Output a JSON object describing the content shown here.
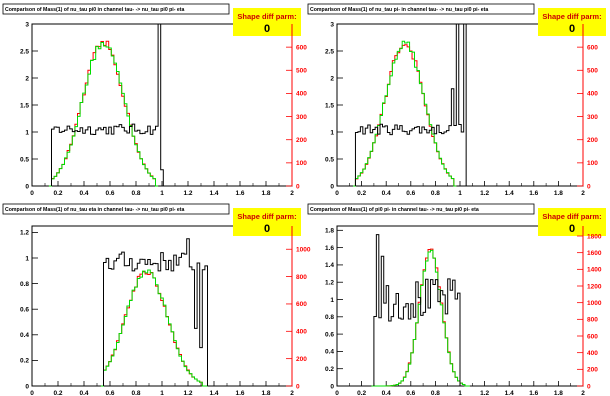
{
  "colors": {
    "ref_hist": "#ff0000",
    "test_hist": "#00dd00",
    "ratio_hist": "#000000",
    "right_axis": "#ff0000",
    "shape_box": "#ffff00",
    "shape_text": "#cc0000"
  },
  "chart_data": [
    {
      "type": "histogram",
      "title": "Comparison of Mass(1) of nu_tau pi0 in channel tau- -> nu_tau pi0 pi- eta",
      "shape_label": "Shape diff parm:",
      "shape_value": "0",
      "xlim": [
        0,
        2
      ],
      "xticks": [
        0,
        0.2,
        0.4,
        0.6,
        0.8,
        1,
        1.2,
        1.4,
        1.6,
        1.8,
        2
      ],
      "xtick_labels": [
        "0",
        "0.2",
        "0.4",
        "0.6",
        "0.8",
        "1",
        "1.2",
        "1.4",
        "1.6",
        "1.8",
        "2"
      ],
      "left_ylim": [
        0,
        3
      ],
      "left_yticks": [
        0,
        0.5,
        1,
        1.5,
        2,
        2.5,
        3
      ],
      "left_ytick_labels": [
        "0",
        "0.5",
        "1",
        "1.5",
        "2",
        "2.5",
        "3"
      ],
      "right_ylim": [
        0,
        700
      ],
      "right_yticks": [
        0,
        100,
        200,
        300,
        400,
        500,
        600
      ],
      "right_ytick_labels": [
        "0",
        "100",
        "200",
        "300",
        "400",
        "500",
        "600"
      ],
      "peak": {
        "mu": 0.55,
        "sigma": 0.16,
        "height": 2.65,
        "from": 0.15,
        "to": 0.95
      },
      "ratio": {
        "from": 0.15,
        "to": 1.0,
        "level": 1.05,
        "noise": 0.1,
        "spikes": [
          [
            0.97,
            3.0
          ],
          [
            0.99,
            0.3
          ]
        ]
      }
    },
    {
      "type": "histogram",
      "title": "Comparison of Mass(1) of nu_tau pi- in channel tau- -> nu_tau pi0 pi- eta",
      "shape_label": "Shape diff parm:",
      "shape_value": "0",
      "xlim": [
        0,
        2
      ],
      "xticks": [
        0,
        0.2,
        0.4,
        0.6,
        0.8,
        1,
        1.2,
        1.4,
        1.6,
        1.8,
        2
      ],
      "xtick_labels": [
        "0",
        "0.2",
        "0.4",
        "0.6",
        "0.8",
        "1",
        "1.2",
        "1.4",
        "1.6",
        "1.8",
        "2"
      ],
      "left_ylim": [
        0,
        3
      ],
      "left_yticks": [
        0,
        0.5,
        1,
        1.5,
        2,
        2.5,
        3
      ],
      "left_ytick_labels": [
        "0",
        "0.5",
        "1",
        "1.5",
        "2",
        "2.5",
        "3"
      ],
      "right_ylim": [
        0,
        700
      ],
      "right_yticks": [
        0,
        100,
        200,
        300,
        400,
        500,
        600
      ],
      "right_ytick_labels": [
        "0",
        "100",
        "200",
        "300",
        "400",
        "500",
        "600"
      ],
      "peak": {
        "mu": 0.55,
        "sigma": 0.16,
        "height": 2.65,
        "from": 0.15,
        "to": 0.95
      },
      "ratio": {
        "from": 0.15,
        "to": 1.05,
        "level": 1.05,
        "noise": 0.1,
        "spikes": [
          [
            0.93,
            1.8
          ],
          [
            0.97,
            3.0
          ],
          [
            1.03,
            3.0
          ]
        ]
      }
    },
    {
      "type": "histogram",
      "title": "Comparison of Mass(1) of nu_tau eta in channel tau- -> nu_tau pi0 pi- eta",
      "shape_label": "Shape diff parm:",
      "shape_value": "0",
      "xlim": [
        0,
        2
      ],
      "xticks": [
        0,
        0.2,
        0.4,
        0.6,
        0.8,
        1,
        1.2,
        1.4,
        1.6,
        1.8,
        2
      ],
      "xtick_labels": [
        "0",
        "0.2",
        "0.4",
        "0.6",
        "0.8",
        "1",
        "1.2",
        "1.4",
        "1.6",
        "1.8",
        "2"
      ],
      "left_ylim": [
        0,
        1.25
      ],
      "left_yticks": [
        0,
        0.2,
        0.4,
        0.6,
        0.8,
        1,
        1.2
      ],
      "left_ytick_labels": [
        "0",
        "0.2",
        "0.4",
        "0.6",
        "0.8",
        "1",
        "1.2"
      ],
      "right_ylim": [
        0,
        1170
      ],
      "right_yticks": [
        0,
        200,
        400,
        600,
        800,
        1000
      ],
      "right_ytick_labels": [
        "0",
        "200",
        "400",
        "600",
        "800",
        "1000"
      ],
      "peak": {
        "mu": 0.88,
        "sigma": 0.16,
        "height": 0.9,
        "from": 0.55,
        "to": 1.32
      },
      "ratio": {
        "from": 0.55,
        "to": 1.35,
        "level": 0.97,
        "noise": 0.08,
        "spikes": [
          [
            1.2,
            1.15
          ],
          [
            1.25,
            0.45
          ],
          [
            1.3,
            0.3
          ]
        ]
      }
    },
    {
      "type": "histogram",
      "title": "Comparison of Mass(1) of pi0 pi- in channel tau- -> nu_tau pi0 pi- eta",
      "shape_label": "Shape diff parm:",
      "shape_value": "0",
      "xlim": [
        0,
        2
      ],
      "xticks": [
        0,
        0.2,
        0.4,
        0.6,
        0.8,
        1,
        1.2,
        1.4,
        1.6,
        1.8,
        2
      ],
      "xtick_labels": [
        "0",
        "0.2",
        "0.4",
        "0.6",
        "0.8",
        "1",
        "1.2",
        "1.4",
        "1.6",
        "1.8",
        "2"
      ],
      "left_ylim": [
        0,
        1.85
      ],
      "left_yticks": [
        0,
        0.2,
        0.4,
        0.6,
        0.8,
        1,
        1.2,
        1.4,
        1.6,
        1.8
      ],
      "left_ytick_labels": [
        "0",
        "0.2",
        "0.4",
        "0.6",
        "0.8",
        "1",
        "1.2",
        "1.4",
        "1.6",
        "1.8"
      ],
      "right_ylim": [
        0,
        1920
      ],
      "right_yticks": [
        0,
        200,
        400,
        600,
        800,
        1000,
        1200,
        1400,
        1600,
        1800
      ],
      "right_ytick_labels": [
        "0",
        "200",
        "400",
        "600",
        "800",
        "1000",
        "1200",
        "1400",
        "1600",
        "1800"
      ],
      "peak": {
        "mu": 0.76,
        "sigma": 0.09,
        "height": 1.55,
        "from": 0.3,
        "to": 1.05
      },
      "ratio": {
        "from": 0.3,
        "to": 1.0,
        "level": 1.0,
        "noise": 0.25,
        "spikes": [
          [
            0.32,
            1.75
          ],
          [
            0.36,
            1.5
          ]
        ]
      }
    }
  ]
}
